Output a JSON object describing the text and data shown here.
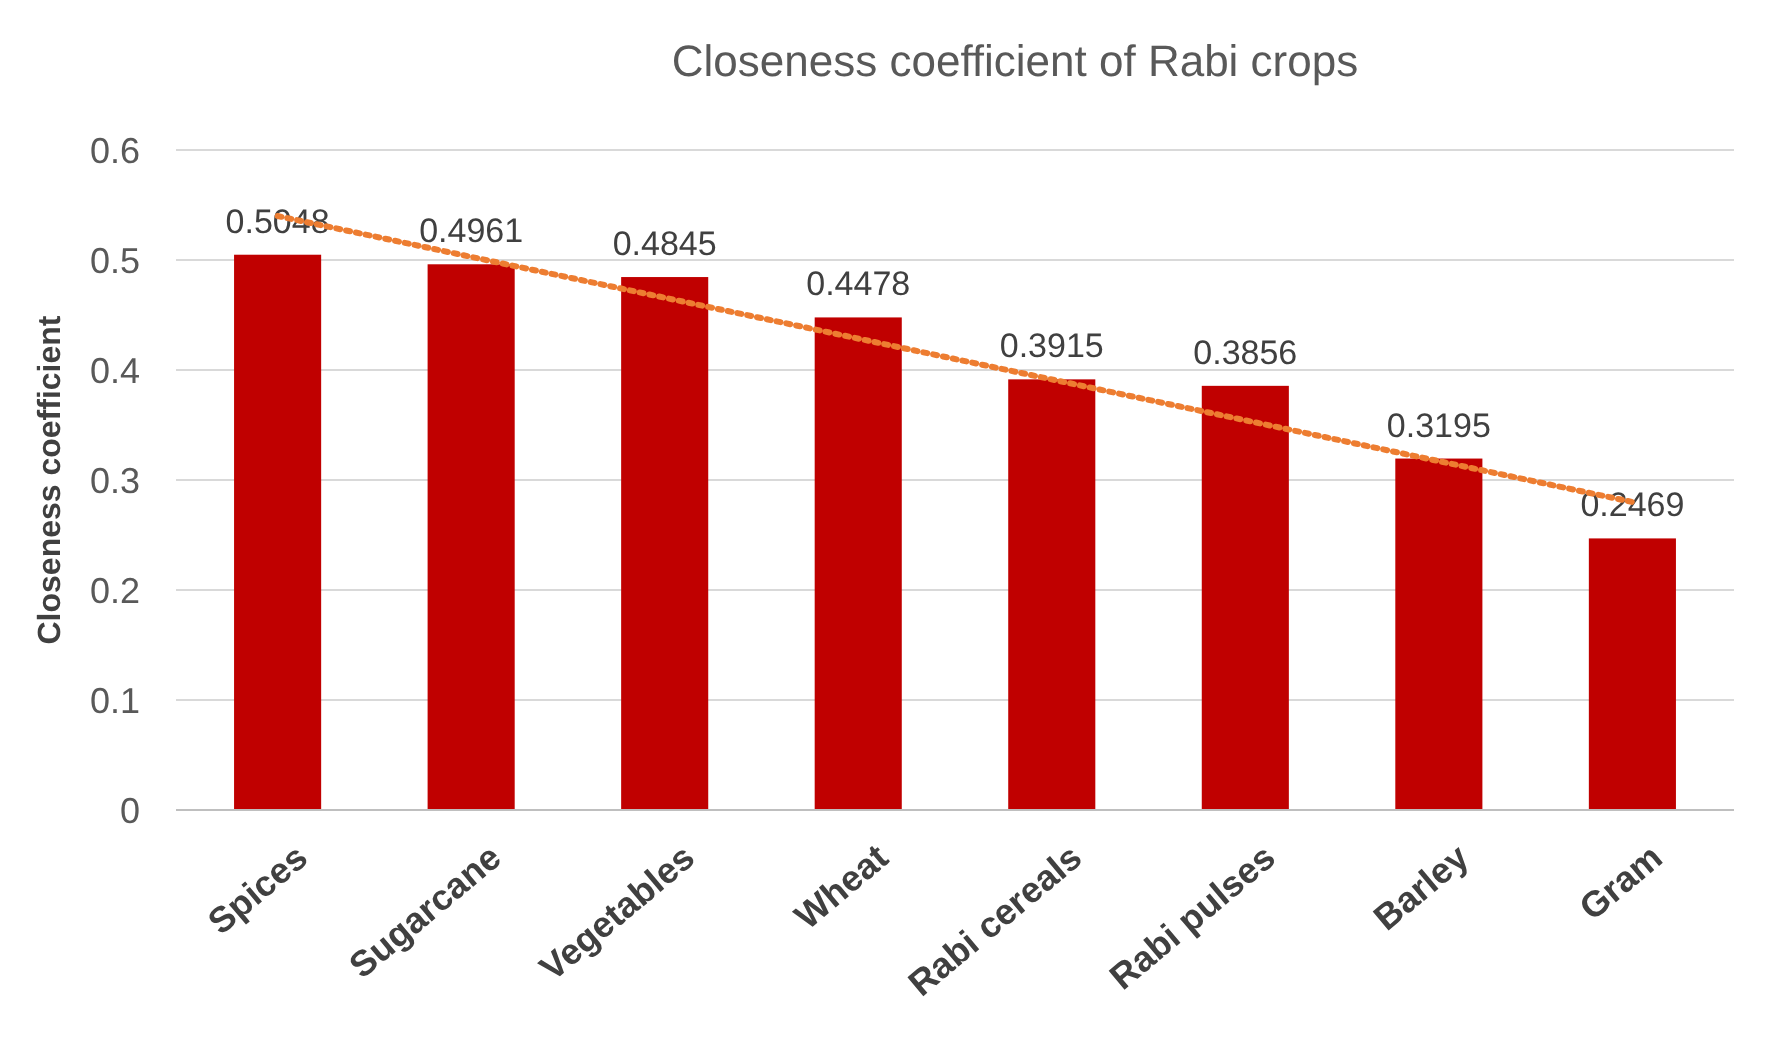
{
  "chart_data": {
    "type": "bar",
    "title": "Closeness coefficient of Rabi crops",
    "ylabel": "Closeness coefficient",
    "categories": [
      "Spices",
      "Sugarcane",
      "Vegetables",
      "Wheat",
      "Rabi cereals",
      "Rabi pulses",
      "Barley",
      "Gram"
    ],
    "series": [
      {
        "color": "#c00000",
        "values": [
          0.5048,
          0.4961,
          0.4845,
          0.4478,
          0.3915,
          0.3856,
          0.3195,
          0.2469
        ],
        "value_labels": [
          "0.5048",
          "0.4961",
          "0.4845",
          "0.4478",
          "0.3915",
          "0.3856",
          "0.3195",
          "0.2469"
        ]
      },
      {
        "type": "line",
        "color": "#ed7d31",
        "line_style": "dotted",
        "x": [
          "Spices",
          "Gram"
        ],
        "values": [
          0.54,
          0.28
        ]
      }
    ],
    "ylim": [
      0,
      0.6
    ],
    "yticks": [
      0,
      0.1,
      0.2,
      0.3,
      0.4,
      0.5,
      0.6
    ],
    "grid": "y"
  }
}
